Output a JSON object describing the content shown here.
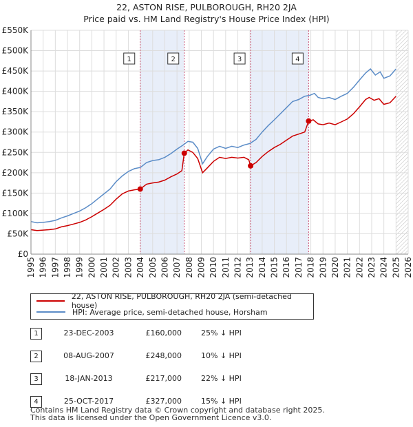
{
  "header": {
    "title_line1": "22, ASTON RISE, PULBOROUGH, RH20 2JA",
    "title_line2": "Price paid vs. HM Land Registry's House Price Index (HPI)"
  },
  "chart_data": {
    "type": "line",
    "title": "22, ASTON RISE, PULBOROUGH, RH20 2JA",
    "subtitle": "Price paid vs. HM Land Registry's House Price Index (HPI)",
    "xlim": [
      1995,
      2026
    ],
    "ylim": [
      0,
      550000
    ],
    "x_ticks": [
      1995,
      1996,
      1997,
      1998,
      1999,
      2000,
      2001,
      2002,
      2003,
      2004,
      2005,
      2006,
      2007,
      2008,
      2009,
      2010,
      2011,
      2012,
      2013,
      2014,
      2015,
      2016,
      2017,
      2018,
      2019,
      2020,
      2021,
      2022,
      2023,
      2024,
      2025,
      2026
    ],
    "y_ticks": [
      {
        "value": 0,
        "label": "£0"
      },
      {
        "value": 50000,
        "label": "£50K"
      },
      {
        "value": 100000,
        "label": "£100K"
      },
      {
        "value": 150000,
        "label": "£150K"
      },
      {
        "value": 200000,
        "label": "£200K"
      },
      {
        "value": 250000,
        "label": "£250K"
      },
      {
        "value": 300000,
        "label": "£300K"
      },
      {
        "value": 350000,
        "label": "£350K"
      },
      {
        "value": 400000,
        "label": "£400K"
      },
      {
        "value": 450000,
        "label": "£450K"
      },
      {
        "value": 500000,
        "label": "£500K"
      },
      {
        "value": 550000,
        "label": "£550K"
      }
    ],
    "grid": true,
    "shaded_periods": [
      [
        2003.98,
        2007.6
      ],
      [
        2013.05,
        2017.82
      ]
    ],
    "hatched_future_from": 2025.0,
    "series": [
      {
        "name": "22, ASTON RISE, PULBOROUGH, RH20 2JA (semi-detached house)",
        "color": "#cc0000",
        "points": [
          [
            1995.0,
            60000
          ],
          [
            1995.5,
            58000
          ],
          [
            1996.0,
            59000
          ],
          [
            1996.5,
            60000
          ],
          [
            1997.0,
            62000
          ],
          [
            1997.5,
            67000
          ],
          [
            1998.0,
            70000
          ],
          [
            1998.5,
            74000
          ],
          [
            1999.0,
            78000
          ],
          [
            1999.5,
            84000
          ],
          [
            2000.0,
            92000
          ],
          [
            2000.5,
            101000
          ],
          [
            2001.0,
            110000
          ],
          [
            2001.5,
            120000
          ],
          [
            2002.0,
            135000
          ],
          [
            2002.5,
            148000
          ],
          [
            2003.0,
            155000
          ],
          [
            2003.5,
            158000
          ],
          [
            2003.98,
            160000
          ],
          [
            2004.5,
            172000
          ],
          [
            2005.0,
            175000
          ],
          [
            2005.5,
            177000
          ],
          [
            2006.0,
            182000
          ],
          [
            2006.5,
            190000
          ],
          [
            2007.0,
            197000
          ],
          [
            2007.4,
            205000
          ],
          [
            2007.6,
            248000
          ],
          [
            2007.9,
            256000
          ],
          [
            2008.3,
            250000
          ],
          [
            2008.7,
            235000
          ],
          [
            2009.1,
            200000
          ],
          [
            2009.5,
            212000
          ],
          [
            2010.0,
            228000
          ],
          [
            2010.5,
            238000
          ],
          [
            2011.0,
            235000
          ],
          [
            2011.5,
            238000
          ],
          [
            2012.0,
            236000
          ],
          [
            2012.5,
            238000
          ],
          [
            2012.9,
            232000
          ],
          [
            2013.05,
            217000
          ],
          [
            2013.5,
            225000
          ],
          [
            2014.0,
            240000
          ],
          [
            2014.5,
            252000
          ],
          [
            2015.0,
            262000
          ],
          [
            2015.5,
            270000
          ],
          [
            2016.0,
            280000
          ],
          [
            2016.5,
            290000
          ],
          [
            2017.0,
            295000
          ],
          [
            2017.5,
            300000
          ],
          [
            2017.82,
            327000
          ],
          [
            2018.2,
            330000
          ],
          [
            2018.6,
            320000
          ],
          [
            2019.0,
            318000
          ],
          [
            2019.5,
            322000
          ],
          [
            2020.0,
            318000
          ],
          [
            2020.5,
            325000
          ],
          [
            2021.0,
            332000
          ],
          [
            2021.5,
            345000
          ],
          [
            2022.0,
            362000
          ],
          [
            2022.5,
            380000
          ],
          [
            2022.8,
            385000
          ],
          [
            2023.2,
            378000
          ],
          [
            2023.6,
            382000
          ],
          [
            2024.0,
            368000
          ],
          [
            2024.5,
            372000
          ],
          [
            2025.0,
            388000
          ]
        ]
      },
      {
        "name": "HPI: Average price, semi-detached house, Horsham",
        "color": "#5b8cc7",
        "points": [
          [
            1995.0,
            80000
          ],
          [
            1995.5,
            77000
          ],
          [
            1996.0,
            78000
          ],
          [
            1996.5,
            80000
          ],
          [
            1997.0,
            83000
          ],
          [
            1997.5,
            89000
          ],
          [
            1998.0,
            94000
          ],
          [
            1998.5,
            100000
          ],
          [
            1999.0,
            106000
          ],
          [
            1999.5,
            114000
          ],
          [
            2000.0,
            124000
          ],
          [
            2000.5,
            136000
          ],
          [
            2001.0,
            148000
          ],
          [
            2001.5,
            160000
          ],
          [
            2002.0,
            178000
          ],
          [
            2002.5,
            192000
          ],
          [
            2003.0,
            203000
          ],
          [
            2003.5,
            210000
          ],
          [
            2004.0,
            213000
          ],
          [
            2004.5,
            225000
          ],
          [
            2005.0,
            230000
          ],
          [
            2005.5,
            232000
          ],
          [
            2006.0,
            238000
          ],
          [
            2006.5,
            247000
          ],
          [
            2007.0,
            258000
          ],
          [
            2007.5,
            268000
          ],
          [
            2007.9,
            277000
          ],
          [
            2008.3,
            275000
          ],
          [
            2008.7,
            260000
          ],
          [
            2009.1,
            222000
          ],
          [
            2009.5,
            240000
          ],
          [
            2010.0,
            258000
          ],
          [
            2010.5,
            265000
          ],
          [
            2011.0,
            260000
          ],
          [
            2011.5,
            265000
          ],
          [
            2012.0,
            262000
          ],
          [
            2012.5,
            268000
          ],
          [
            2013.0,
            272000
          ],
          [
            2013.5,
            282000
          ],
          [
            2014.0,
            300000
          ],
          [
            2014.5,
            316000
          ],
          [
            2015.0,
            330000
          ],
          [
            2015.5,
            345000
          ],
          [
            2016.0,
            360000
          ],
          [
            2016.5,
            375000
          ],
          [
            2017.0,
            380000
          ],
          [
            2017.5,
            388000
          ],
          [
            2017.9,
            390000
          ],
          [
            2018.3,
            395000
          ],
          [
            2018.6,
            385000
          ],
          [
            2019.0,
            382000
          ],
          [
            2019.5,
            385000
          ],
          [
            2020.0,
            380000
          ],
          [
            2020.5,
            388000
          ],
          [
            2021.0,
            395000
          ],
          [
            2021.5,
            410000
          ],
          [
            2022.0,
            428000
          ],
          [
            2022.5,
            445000
          ],
          [
            2022.9,
            455000
          ],
          [
            2023.3,
            440000
          ],
          [
            2023.7,
            448000
          ],
          [
            2024.0,
            432000
          ],
          [
            2024.5,
            438000
          ],
          [
            2025.0,
            455000
          ]
        ]
      }
    ],
    "sales": [
      {
        "id": "1",
        "x": 2003.98,
        "price": 160000
      },
      {
        "id": "2",
        "x": 2007.6,
        "price": 248000
      },
      {
        "id": "3",
        "x": 2013.05,
        "price": 217000
      },
      {
        "id": "4",
        "x": 2017.82,
        "price": 327000
      }
    ]
  },
  "legend": {
    "items": [
      {
        "label": "22, ASTON RISE, PULBOROUGH, RH20 2JA (semi-detached house)",
        "color": "#cc0000"
      },
      {
        "label": "HPI: Average price, semi-detached house, Horsham",
        "color": "#5b8cc7"
      }
    ]
  },
  "transactions": [
    {
      "num": "1",
      "date": "23-DEC-2003",
      "price": "£160,000",
      "hpi": "25% ↓ HPI"
    },
    {
      "num": "2",
      "date": "08-AUG-2007",
      "price": "£248,000",
      "hpi": "10% ↓ HPI"
    },
    {
      "num": "3",
      "date": "18-JAN-2013",
      "price": "£217,000",
      "hpi": "22% ↓ HPI"
    },
    {
      "num": "4",
      "date": "25-OCT-2017",
      "price": "£327,000",
      "hpi": "15% ↓ HPI"
    }
  ],
  "footer": {
    "line1": "Contains HM Land Registry data © Crown copyright and database right 2025.",
    "line2": "This data is licensed under the Open Government Licence v3.0."
  }
}
